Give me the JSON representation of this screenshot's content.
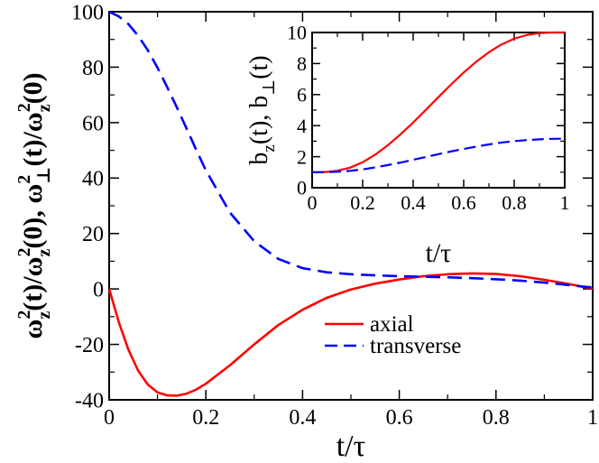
{
  "chart_data": [
    {
      "id": "main",
      "type": "line",
      "xlabel": "t/τ",
      "ylabel": "ω_z²(t)/ω_z²(0), ω_⊥²(t)/ω_z²(0)",
      "ylabel_parts": {
        "a_base": "ω",
        "a_sup": "2",
        "a_sub": "z",
        "a_rest": "(t)/",
        "b_base": "ω",
        "b_sup": "2",
        "b_sub": "z",
        "b_rest": "(0), ",
        "c_base": "ω",
        "c_sup": "2",
        "c_sub": "⊥",
        "c_rest": "(t)/",
        "d_base": "ω",
        "d_sup": "2",
        "d_sub": "z",
        "d_rest": "(0)"
      },
      "xlim": [
        0,
        1
      ],
      "ylim": [
        -40,
        100
      ],
      "xticks": [
        0,
        0.2,
        0.4,
        0.6,
        0.8,
        1
      ],
      "xtick_labels": [
        "0",
        "0.2",
        "0.4",
        "0.6",
        "0.8",
        "1"
      ],
      "yticks": [
        -40,
        -20,
        0,
        20,
        40,
        60,
        80,
        100
      ],
      "ytick_labels": [
        "-40",
        "-20",
        "0",
        "20",
        "40",
        "60",
        "80",
        "100"
      ],
      "legend_position": "lower-right",
      "series": [
        {
          "name": "axial",
          "color": "#ff0000",
          "style": "solid",
          "x": [
            0,
            0.02,
            0.04,
            0.06,
            0.08,
            0.1,
            0.12,
            0.14,
            0.16,
            0.18,
            0.2,
            0.25,
            0.3,
            0.35,
            0.4,
            0.45,
            0.5,
            0.55,
            0.6,
            0.65,
            0.7,
            0.75,
            0.8,
            0.85,
            0.9,
            0.95,
            1.0
          ],
          "y": [
            0,
            -12,
            -22,
            -29.5,
            -34.5,
            -37.3,
            -38.4,
            -38.5,
            -37.8,
            -36.3,
            -34.2,
            -27.5,
            -20.0,
            -13.0,
            -7.5,
            -3.2,
            -0.2,
            1.9,
            3.4,
            4.6,
            5.3,
            5.6,
            5.4,
            4.6,
            3.3,
            1.8,
            0
          ]
        },
        {
          "name": "transverse",
          "color": "#0000ff",
          "style": "dashed",
          "x": [
            0,
            0.02,
            0.04,
            0.06,
            0.08,
            0.1,
            0.12,
            0.14,
            0.16,
            0.18,
            0.2,
            0.25,
            0.3,
            0.35,
            0.4,
            0.45,
            0.5,
            0.55,
            0.6,
            0.65,
            0.7,
            0.75,
            0.8,
            0.85,
            0.9,
            0.95,
            1.0
          ],
          "y": [
            100,
            98.3,
            95.5,
            91.3,
            86.1,
            79.8,
            72.8,
            65.5,
            57.9,
            50.2,
            42.8,
            27.5,
            17.2,
            10.8,
            7.5,
            6.0,
            5.3,
            4.9,
            4.6,
            4.4,
            4.2,
            3.9,
            3.5,
            3.0,
            2.3,
            1.4,
            0.5
          ]
        }
      ]
    },
    {
      "id": "inset",
      "type": "line",
      "xlabel": "t/τ",
      "ylabel": "b_z(t), b_⊥(t)",
      "ylabel_parts": {
        "a_base": "b",
        "a_sub": "z",
        "a_rest": "(t), ",
        "b_base": "b",
        "b_sub": "⊥",
        "b_rest": "(t)"
      },
      "xlim": [
        0,
        1
      ],
      "ylim": [
        0,
        10
      ],
      "xticks": [
        0,
        0.2,
        0.4,
        0.6,
        0.8,
        1
      ],
      "xtick_labels": [
        "0",
        "0.2",
        "0.4",
        "0.6",
        "0.8",
        "1"
      ],
      "yticks": [
        0,
        2,
        4,
        6,
        8,
        10
      ],
      "ytick_labels": [
        "0",
        "2",
        "4",
        "6",
        "8",
        "10"
      ],
      "series": [
        {
          "name": "b_z",
          "color": "#ff0000",
          "style": "solid",
          "x": [
            0,
            0.05,
            0.1,
            0.15,
            0.2,
            0.25,
            0.3,
            0.35,
            0.4,
            0.45,
            0.5,
            0.55,
            0.6,
            0.65,
            0.7,
            0.75,
            0.8,
            0.85,
            0.9,
            0.95,
            1.0
          ],
          "y": [
            1.0,
            1.01,
            1.09,
            1.29,
            1.64,
            2.13,
            2.74,
            3.44,
            4.2,
            5.01,
            5.84,
            6.65,
            7.42,
            8.12,
            8.73,
            9.23,
            9.6,
            9.84,
            9.96,
            10.0,
            10.0
          ]
        },
        {
          "name": "b_perp",
          "color": "#0000ff",
          "style": "dashed",
          "x": [
            0,
            0.05,
            0.1,
            0.15,
            0.2,
            0.25,
            0.3,
            0.35,
            0.4,
            0.45,
            0.5,
            0.55,
            0.6,
            0.65,
            0.7,
            0.75,
            0.8,
            0.85,
            0.9,
            0.95,
            1.0
          ],
          "y": [
            1.0,
            1.0,
            1.03,
            1.09,
            1.18,
            1.31,
            1.46,
            1.62,
            1.8,
            1.98,
            2.16,
            2.34,
            2.5,
            2.65,
            2.79,
            2.91,
            3.0,
            3.07,
            3.12,
            3.15,
            3.16
          ]
        }
      ]
    }
  ],
  "legend": {
    "items": [
      {
        "label": "axial",
        "color": "#ff0000",
        "style": "solid"
      },
      {
        "label": "transverse",
        "color": "#0000ff",
        "style": "dashed"
      }
    ]
  }
}
